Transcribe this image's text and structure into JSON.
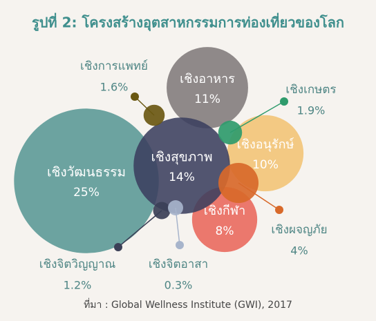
{
  "chart_data": {
    "type": "bubble",
    "title": "รูปที่ 2: โครงสร้างอุตสาหกรรมการท่องเที่ยวของโลก",
    "source": "ที่มา : Global Wellness Institute (GWI), 2017",
    "categories": [
      "เชิงวัฒนธรรม",
      "เชิงอาหาร",
      "เชิงอนุรักษ์",
      "เชิงกีฬา",
      "เชิงสุขภาพ",
      "เชิงผจญภัย",
      "เชิงเกษตร",
      "เชิงการแพทย์",
      "เชิงจิตวิญญาณ",
      "เชิงจิตอาสา"
    ],
    "values": [
      25,
      11,
      10,
      8,
      14,
      4,
      1.9,
      1.6,
      1.2,
      0.3
    ],
    "value_labels": [
      "25%",
      "11%",
      "10%",
      "8%",
      "14%",
      "4%",
      "1.9%",
      "1.6%",
      "1.2%",
      "0.3%"
    ],
    "colors": [
      "#5f9c99",
      "#858080",
      "#f2c57a",
      "#e96e62",
      "#3b3f5f",
      "#d8692a",
      "#2f9b6c",
      "#6a5812",
      "#3b4057",
      "#a7b4cb"
    ]
  }
}
